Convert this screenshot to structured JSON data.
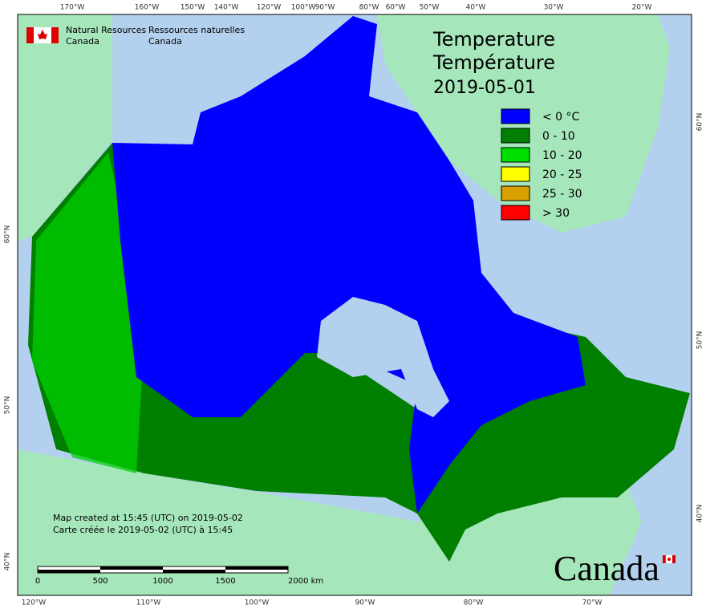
{
  "header": {
    "department_en": [
      "Natural Resources",
      "Canada"
    ],
    "department_fr": [
      "Ressources naturelles",
      "Canada"
    ]
  },
  "title": {
    "en": "Temperature",
    "fr": "Température",
    "date": "2019-05-01"
  },
  "legend": [
    {
      "label": "< 0 °C",
      "color": "#0000ff"
    },
    {
      "label": "0 - 10",
      "color": "#007f00"
    },
    {
      "label": "10 - 20",
      "color": "#00e000"
    },
    {
      "label": "20 - 25",
      "color": "#ffff00"
    },
    {
      "label": "25 - 30",
      "color": "#d9a000"
    },
    {
      "label": "> 30",
      "color": "#ff0000"
    }
  ],
  "graticule": {
    "top": [
      "170°W",
      "160°W",
      "150°W",
      "140°W",
      "120°W",
      "100°W",
      "90°W",
      "80°W",
      "60°W",
      "50°W",
      "40°W",
      "30°W",
      "20°W"
    ],
    "bottom": [
      "120°W",
      "110°W",
      "100°W",
      "90°W",
      "80°W",
      "70°W"
    ],
    "left": [
      "60°N",
      "50°N",
      "40°N"
    ],
    "right": [
      "60°N",
      "50°N",
      "40°N"
    ]
  },
  "notes": [
    "Map created at 15:45 (UTC) on 2019-05-02",
    "Carte créée le 2019-05-02 (UTC) à 15:45"
  ],
  "scale_bar": [
    "0",
    "500",
    "1000",
    "1500",
    "2000 km"
  ],
  "wordmark": "Canada"
}
